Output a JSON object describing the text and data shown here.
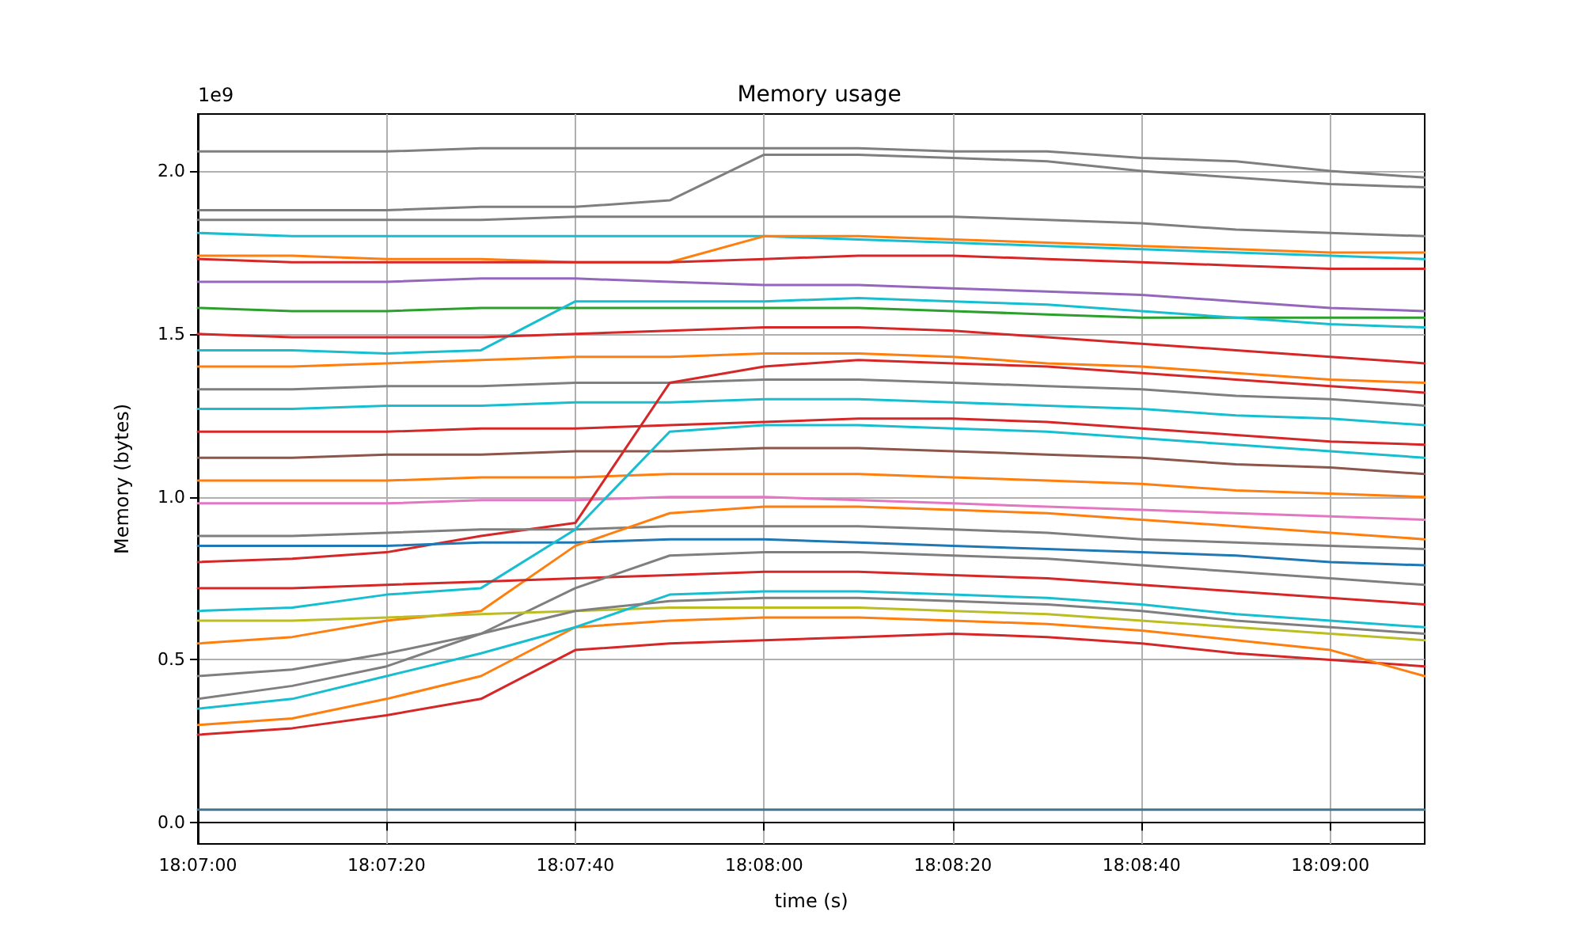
{
  "chart_data": {
    "type": "line",
    "title": "Memory usage",
    "xlabel": "time (s)",
    "ylabel": "Memory (bytes)",
    "annotations": [
      "1e9"
    ],
    "x": [
      18.116667,
      18.119444,
      18.122222,
      18.125,
      18.127778,
      18.130556,
      18.133333,
      18.136111,
      18.138889,
      18.141667,
      18.144444,
      18.147222,
      18.15,
      18.152778
    ],
    "xlim": [
      18.116667,
      18.152778
    ],
    "xticks": [
      {
        "value": 18.116667,
        "label": "18:07:00"
      },
      {
        "value": 18.122222,
        "label": "18:07:20"
      },
      {
        "value": 18.127778,
        "label": "18:07:40"
      },
      {
        "value": 18.133333,
        "label": "18:08:00"
      },
      {
        "value": 18.138889,
        "label": "18:08:20"
      },
      {
        "value": 18.144444,
        "label": "18:08:40"
      },
      {
        "value": 18.15,
        "label": "18:09:00"
      }
    ],
    "ylim": [
      -0.065,
      2.175
    ],
    "yticks": [
      {
        "value": 0,
        "label": "0.0"
      },
      0.5,
      {
        "value": 1,
        "label": "1.0"
      },
      1.5,
      {
        "value": 2,
        "label": "2.0"
      }
    ],
    "grid": true,
    "marker": "none",
    "line_style": "solid",
    "series": [
      {
        "color": "#7f7f7f",
        "values": [
          2.06,
          2.06,
          2.06,
          2.07,
          2.07,
          2.07,
          2.07,
          2.07,
          2.06,
          2.06,
          2.04,
          2.03,
          2.0,
          1.98
        ]
      },
      {
        "color": "#7f7f7f",
        "values": [
          1.88,
          1.88,
          1.88,
          1.89,
          1.89,
          1.91,
          2.05,
          2.05,
          2.04,
          2.03,
          2.0,
          1.98,
          1.96,
          1.95
        ]
      },
      {
        "color": "#7f7f7f",
        "values": [
          1.85,
          1.85,
          1.85,
          1.85,
          1.86,
          1.86,
          1.86,
          1.86,
          1.86,
          1.85,
          1.84,
          1.82,
          1.81,
          1.8
        ]
      },
      {
        "color": "#17becf",
        "values": [
          1.81,
          1.8,
          1.8,
          1.8,
          1.8,
          1.8,
          1.8,
          1.79,
          1.78,
          1.77,
          1.76,
          1.75,
          1.74,
          1.73
        ]
      },
      {
        "color": "#ff7f0e",
        "values": [
          1.74,
          1.74,
          1.73,
          1.73,
          1.72,
          1.72,
          1.8,
          1.8,
          1.79,
          1.78,
          1.77,
          1.76,
          1.75,
          1.75
        ]
      },
      {
        "color": "#d62728",
        "values": [
          1.73,
          1.72,
          1.72,
          1.72,
          1.72,
          1.72,
          1.73,
          1.74,
          1.74,
          1.73,
          1.72,
          1.71,
          1.7,
          1.7
        ]
      },
      {
        "color": "#9467bd",
        "values": [
          1.66,
          1.66,
          1.66,
          1.67,
          1.67,
          1.66,
          1.65,
          1.65,
          1.64,
          1.63,
          1.62,
          1.6,
          1.58,
          1.57
        ]
      },
      {
        "color": "#2ca02c",
        "values": [
          1.58,
          1.57,
          1.57,
          1.58,
          1.58,
          1.58,
          1.58,
          1.58,
          1.57,
          1.56,
          1.55,
          1.55,
          1.55,
          1.55
        ]
      },
      {
        "color": "#17becf",
        "values": [
          1.45,
          1.45,
          1.44,
          1.45,
          1.6,
          1.6,
          1.6,
          1.61,
          1.6,
          1.59,
          1.57,
          1.55,
          1.53,
          1.52
        ]
      },
      {
        "color": "#d62728",
        "values": [
          1.5,
          1.49,
          1.49,
          1.49,
          1.5,
          1.51,
          1.52,
          1.52,
          1.51,
          1.49,
          1.47,
          1.45,
          1.43,
          1.41
        ]
      },
      {
        "color": "#ff7f0e",
        "values": [
          1.4,
          1.4,
          1.41,
          1.42,
          1.43,
          1.43,
          1.44,
          1.44,
          1.43,
          1.41,
          1.4,
          1.38,
          1.36,
          1.35
        ]
      },
      {
        "color": "#7f7f7f",
        "values": [
          1.33,
          1.33,
          1.34,
          1.34,
          1.35,
          1.35,
          1.36,
          1.36,
          1.35,
          1.34,
          1.33,
          1.31,
          1.3,
          1.28
        ]
      },
      {
        "color": "#17becf",
        "values": [
          1.27,
          1.27,
          1.28,
          1.28,
          1.29,
          1.29,
          1.3,
          1.3,
          1.29,
          1.28,
          1.27,
          1.25,
          1.24,
          1.22
        ]
      },
      {
        "color": "#d62728",
        "values": [
          1.2,
          1.2,
          1.2,
          1.21,
          1.21,
          1.22,
          1.23,
          1.24,
          1.24,
          1.23,
          1.21,
          1.19,
          1.17,
          1.16
        ]
      },
      {
        "color": "#8c564b",
        "values": [
          1.12,
          1.12,
          1.13,
          1.13,
          1.14,
          1.14,
          1.15,
          1.15,
          1.14,
          1.13,
          1.12,
          1.1,
          1.09,
          1.07
        ]
      },
      {
        "color": "#ff7f0e",
        "values": [
          1.05,
          1.05,
          1.05,
          1.06,
          1.06,
          1.07,
          1.07,
          1.07,
          1.06,
          1.05,
          1.04,
          1.02,
          1.01,
          1.0
        ]
      },
      {
        "color": "#e377c2",
        "values": [
          0.98,
          0.98,
          0.98,
          0.99,
          0.99,
          1.0,
          1.0,
          0.99,
          0.98,
          0.97,
          0.96,
          0.95,
          0.94,
          0.93
        ]
      },
      {
        "color": "#d62728",
        "values": [
          0.8,
          0.81,
          0.83,
          0.88,
          0.92,
          1.35,
          1.4,
          1.42,
          1.41,
          1.4,
          1.38,
          1.36,
          1.34,
          1.32
        ]
      },
      {
        "color": "#7f7f7f",
        "values": [
          0.88,
          0.88,
          0.89,
          0.9,
          0.9,
          0.91,
          0.91,
          0.91,
          0.9,
          0.89,
          0.87,
          0.86,
          0.85,
          0.84
        ]
      },
      {
        "color": "#1f77b4",
        "values": [
          0.85,
          0.85,
          0.85,
          0.86,
          0.86,
          0.87,
          0.87,
          0.86,
          0.85,
          0.84,
          0.83,
          0.82,
          0.8,
          0.79
        ]
      },
      {
        "color": "#17becf",
        "values": [
          0.65,
          0.66,
          0.7,
          0.72,
          0.9,
          1.2,
          1.22,
          1.22,
          1.21,
          1.2,
          1.18,
          1.16,
          1.14,
          1.12
        ]
      },
      {
        "color": "#ff7f0e",
        "values": [
          0.55,
          0.57,
          0.62,
          0.65,
          0.85,
          0.95,
          0.97,
          0.97,
          0.96,
          0.95,
          0.93,
          0.91,
          0.89,
          0.87
        ]
      },
      {
        "color": "#d62728",
        "values": [
          0.72,
          0.72,
          0.73,
          0.74,
          0.75,
          0.76,
          0.77,
          0.77,
          0.76,
          0.75,
          0.73,
          0.71,
          0.69,
          0.67
        ]
      },
      {
        "color": "#7f7f7f",
        "values": [
          0.45,
          0.47,
          0.52,
          0.58,
          0.72,
          0.82,
          0.83,
          0.83,
          0.82,
          0.81,
          0.79,
          0.77,
          0.75,
          0.73
        ]
      },
      {
        "color": "#bcbd22",
        "values": [
          0.62,
          0.62,
          0.63,
          0.64,
          0.65,
          0.66,
          0.66,
          0.66,
          0.65,
          0.64,
          0.62,
          0.6,
          0.58,
          0.56
        ]
      },
      {
        "color": "#d62728",
        "values": [
          0.27,
          0.29,
          0.33,
          0.38,
          0.53,
          0.55,
          0.56,
          0.57,
          0.58,
          0.57,
          0.55,
          0.52,
          0.5,
          0.48
        ]
      },
      {
        "color": "#ff7f0e",
        "values": [
          0.3,
          0.32,
          0.38,
          0.45,
          0.6,
          0.62,
          0.63,
          0.63,
          0.62,
          0.61,
          0.59,
          0.56,
          0.53,
          0.45
        ]
      },
      {
        "color": "#17becf",
        "values": [
          0.35,
          0.38,
          0.45,
          0.52,
          0.6,
          0.7,
          0.71,
          0.71,
          0.7,
          0.69,
          0.67,
          0.64,
          0.62,
          0.6
        ]
      },
      {
        "color": "#7f7f7f",
        "values": [
          0.38,
          0.42,
          0.48,
          0.58,
          0.65,
          0.68,
          0.69,
          0.69,
          0.68,
          0.67,
          0.65,
          0.62,
          0.6,
          0.58
        ]
      },
      {
        "color": "#3f7590",
        "values": [
          0.04,
          0.04,
          0.04,
          0.04,
          0.04,
          0.04,
          0.04,
          0.04,
          0.04,
          0.04,
          0.04,
          0.04,
          0.04,
          0.04
        ]
      }
    ]
  }
}
